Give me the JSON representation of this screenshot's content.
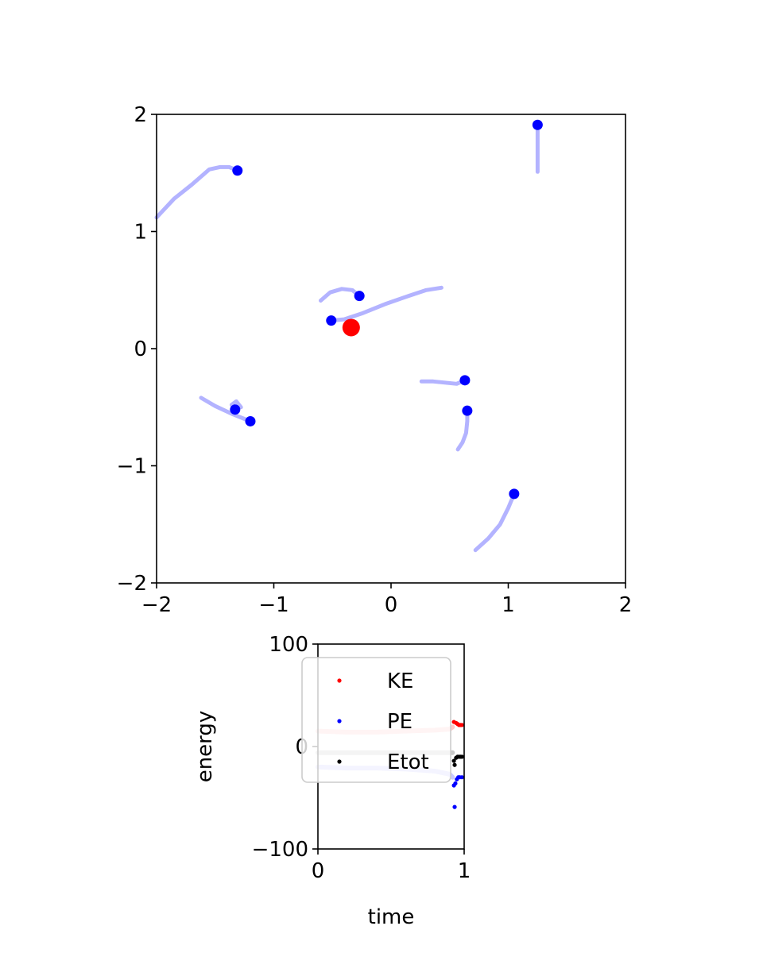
{
  "chart_data": [
    {
      "type": "scatter",
      "title": "",
      "xlabel": "",
      "ylabel": "",
      "xlim": [
        -2,
        2
      ],
      "ylim": [
        -2,
        2
      ],
      "xticks": [
        -2,
        -1,
        0,
        1,
        2
      ],
      "yticks": [
        -2,
        -1,
        0,
        1,
        2
      ],
      "xtick_labels": [
        "−2",
        "−1",
        "0",
        "1",
        "2"
      ],
      "ytick_labels": [
        "−2",
        "−1",
        "0",
        "1",
        "2"
      ],
      "grid": false,
      "colors": {
        "trail": "#b3b3ff",
        "particle": "#0000ff",
        "central": "#ff0000"
      },
      "central_body": {
        "x": -0.34,
        "y": 0.18
      },
      "particles": [
        {
          "x": 1.25,
          "y": 1.91
        },
        {
          "x": -1.31,
          "y": 1.52
        },
        {
          "x": -0.27,
          "y": 0.45
        },
        {
          "x": -0.51,
          "y": 0.24
        },
        {
          "x": 0.63,
          "y": -0.27
        },
        {
          "x": 0.65,
          "y": -0.53
        },
        {
          "x": -1.33,
          "y": -0.52
        },
        {
          "x": -1.2,
          "y": -0.62
        },
        {
          "x": 1.05,
          "y": -1.24
        }
      ],
      "trails": [
        [
          [
            1.25,
            1.86
          ],
          [
            1.25,
            1.75
          ],
          [
            1.25,
            1.62
          ],
          [
            1.25,
            1.51
          ]
        ],
        [
          [
            -1.31,
            1.52
          ],
          [
            -1.38,
            1.55
          ],
          [
            -1.46,
            1.55
          ],
          [
            -1.55,
            1.53
          ],
          [
            -1.7,
            1.4
          ],
          [
            -1.85,
            1.28
          ],
          [
            -2.0,
            1.12
          ]
        ],
        [
          [
            -0.51,
            0.24
          ],
          [
            -0.4,
            0.25
          ],
          [
            -0.25,
            0.3
          ],
          [
            -0.05,
            0.38
          ],
          [
            0.15,
            0.45
          ],
          [
            0.3,
            0.5
          ],
          [
            0.43,
            0.52
          ]
        ],
        [
          [
            -0.27,
            0.45
          ],
          [
            -0.33,
            0.5
          ],
          [
            -0.42,
            0.51
          ],
          [
            -0.52,
            0.48
          ],
          [
            -0.6,
            0.41
          ]
        ],
        [
          [
            0.63,
            -0.27
          ],
          [
            0.56,
            -0.3
          ],
          [
            0.46,
            -0.29
          ],
          [
            0.36,
            -0.28
          ],
          [
            0.26,
            -0.28
          ]
        ],
        [
          [
            0.65,
            -0.53
          ],
          [
            0.65,
            -0.62
          ],
          [
            0.64,
            -0.72
          ],
          [
            0.61,
            -0.8
          ],
          [
            0.57,
            -0.86
          ]
        ],
        [
          [
            -1.2,
            -0.62
          ],
          [
            -1.35,
            -0.56
          ],
          [
            -1.5,
            -0.49
          ],
          [
            -1.62,
            -0.42
          ]
        ],
        [
          [
            -1.33,
            -0.52
          ],
          [
            -1.36,
            -0.48
          ],
          [
            -1.32,
            -0.45
          ],
          [
            -1.28,
            -0.5
          ]
        ],
        [
          [
            1.05,
            -1.24
          ],
          [
            1.0,
            -1.36
          ],
          [
            0.93,
            -1.5
          ],
          [
            0.83,
            -1.62
          ],
          [
            0.72,
            -1.72
          ]
        ]
      ]
    },
    {
      "type": "scatter",
      "title": "",
      "xlabel": "time",
      "ylabel": "energy",
      "xlim": [
        0,
        1
      ],
      "ylim": [
        -100,
        100
      ],
      "xticks": [
        0,
        1
      ],
      "yticks": [
        -100,
        0,
        100
      ],
      "xtick_labels": [
        "0",
        "1"
      ],
      "ytick_labels": [
        "−100",
        "0",
        "100"
      ],
      "grid": false,
      "legend": "top-left",
      "series": [
        {
          "name": "KE",
          "color": "#ff0000",
          "fade_color": "#ffc9c9",
          "history": [
            [
              0.0,
              15
            ],
            [
              0.2,
              14
            ],
            [
              0.4,
              14
            ],
            [
              0.6,
              15
            ],
            [
              0.8,
              16
            ],
            [
              0.9,
              17
            ],
            [
              0.92,
              19
            ]
          ],
          "points": [
            [
              0.93,
              24
            ],
            [
              0.945,
              23
            ],
            [
              0.955,
              22
            ],
            [
              0.965,
              21
            ],
            [
              0.975,
              21
            ],
            [
              0.985,
              21
            ]
          ]
        },
        {
          "name": "PE",
          "color": "#0000ff",
          "fade_color": "#c9c9ff",
          "history": [
            [
              0.0,
              -20
            ],
            [
              0.2,
              -21
            ],
            [
              0.4,
              -21
            ],
            [
              0.6,
              -22
            ],
            [
              0.8,
              -24
            ],
            [
              0.9,
              -27
            ],
            [
              0.92,
              -30
            ]
          ],
          "points": [
            [
              0.93,
              -38
            ],
            [
              0.94,
              -36
            ],
            [
              0.935,
              -59
            ],
            [
              0.95,
              -32
            ],
            [
              0.96,
              -30
            ],
            [
              0.97,
              -30
            ],
            [
              0.985,
              -30
            ]
          ]
        },
        {
          "name": "Etot",
          "color": "#000000",
          "fade_color": "#c8c8c8",
          "history": [
            [
              0.0,
              -6
            ],
            [
              0.2,
              -6
            ],
            [
              0.4,
              -6
            ],
            [
              0.6,
              -6
            ],
            [
              0.8,
              -6
            ],
            [
              0.9,
              -6
            ],
            [
              0.92,
              -6
            ]
          ],
          "points": [
            [
              0.93,
              -14
            ],
            [
              0.935,
              -18
            ],
            [
              0.945,
              -11
            ],
            [
              0.955,
              -10
            ],
            [
              0.965,
              -10
            ],
            [
              0.975,
              -10
            ],
            [
              0.985,
              -10
            ]
          ]
        }
      ]
    }
  ]
}
